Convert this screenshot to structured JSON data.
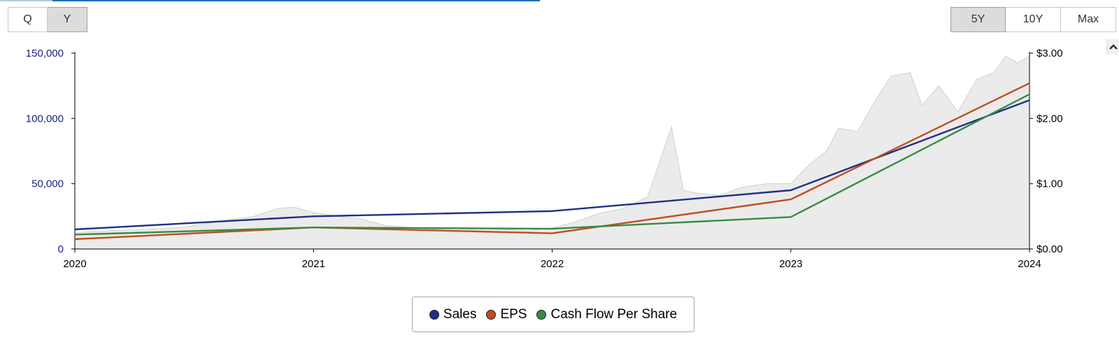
{
  "controls": {
    "period": [
      {
        "label": "Q",
        "active": false
      },
      {
        "label": "Y",
        "active": true
      }
    ],
    "range": [
      {
        "label": "5Y",
        "active": true
      },
      {
        "label": "10Y",
        "active": false
      },
      {
        "label": "Max",
        "active": false
      }
    ]
  },
  "chart_data": {
    "type": "line",
    "title": "",
    "x": [
      2020,
      2021,
      2022,
      2023,
      2024
    ],
    "xlim": [
      2020,
      2024
    ],
    "x_tick_labels": [
      "2020",
      "2021",
      "2022",
      "2023",
      "2024"
    ],
    "left_axis": {
      "range": [
        0,
        150000
      ],
      "tick_labels": [
        "0",
        "50,000",
        "100,000",
        "150,000"
      ],
      "tick_values": [
        0,
        50000,
        100000,
        150000
      ],
      "color": "#1a237e"
    },
    "right_axis": {
      "range": [
        0,
        3
      ],
      "tick_labels": [
        "$0.00",
        "$1.00",
        "$2.00",
        "$3.00"
      ],
      "tick_values": [
        0,
        1,
        2,
        3
      ],
      "color": "#000000"
    },
    "series": [
      {
        "name": "Sales",
        "axis": "left",
        "color": "#1f2f86",
        "values": [
          15000,
          25000,
          29000,
          45000,
          114000
        ]
      },
      {
        "name": "EPS",
        "axis": "right",
        "color": "#c04e1d",
        "values": [
          0.15,
          0.33,
          0.24,
          0.76,
          2.54
        ]
      },
      {
        "name": "Cash Flow Per Share",
        "axis": "right",
        "color": "#3a8a46",
        "values": [
          0.22,
          0.33,
          0.31,
          0.49,
          2.37
        ]
      }
    ],
    "background_price": {
      "axis": "right",
      "fill": "#ebebeb",
      "stroke": "#c6d6cc",
      "points": [
        [
          2020.0,
          0.25
        ],
        [
          2020.15,
          0.28
        ],
        [
          2020.3,
          0.3
        ],
        [
          2020.45,
          0.33
        ],
        [
          2020.6,
          0.42
        ],
        [
          2020.75,
          0.5
        ],
        [
          2020.85,
          0.62
        ],
        [
          2020.92,
          0.64
        ],
        [
          2021.0,
          0.56
        ],
        [
          2021.1,
          0.5
        ],
        [
          2021.2,
          0.46
        ],
        [
          2021.3,
          0.36
        ],
        [
          2021.4,
          0.33
        ],
        [
          2021.5,
          0.3
        ],
        [
          2021.6,
          0.32
        ],
        [
          2021.7,
          0.31
        ],
        [
          2021.8,
          0.3
        ],
        [
          2021.9,
          0.28
        ],
        [
          2022.0,
          0.32
        ],
        [
          2022.1,
          0.42
        ],
        [
          2022.2,
          0.55
        ],
        [
          2022.3,
          0.62
        ],
        [
          2022.4,
          0.8
        ],
        [
          2022.5,
          1.87
        ],
        [
          2022.55,
          0.9
        ],
        [
          2022.6,
          0.86
        ],
        [
          2022.7,
          0.82
        ],
        [
          2022.8,
          0.95
        ],
        [
          2022.9,
          1.0
        ],
        [
          2023.0,
          1.0
        ],
        [
          2023.08,
          1.3
        ],
        [
          2023.15,
          1.5
        ],
        [
          2023.2,
          1.85
        ],
        [
          2023.28,
          1.8
        ],
        [
          2023.35,
          2.25
        ],
        [
          2023.42,
          2.65
        ],
        [
          2023.5,
          2.7
        ],
        [
          2023.55,
          2.2
        ],
        [
          2023.62,
          2.5
        ],
        [
          2023.7,
          2.1
        ],
        [
          2023.78,
          2.6
        ],
        [
          2023.85,
          2.7
        ],
        [
          2023.9,
          2.95
        ],
        [
          2023.95,
          2.85
        ],
        [
          2024.0,
          2.95
        ]
      ]
    }
  },
  "legend": {
    "items": [
      {
        "label": "Sales",
        "color": "#1f2f86"
      },
      {
        "label": "EPS",
        "color": "#c04e1d"
      },
      {
        "label": "Cash Flow Per Share",
        "color": "#3a8a46"
      }
    ]
  },
  "icons": {
    "scroll_up": "chevron-up-icon"
  }
}
